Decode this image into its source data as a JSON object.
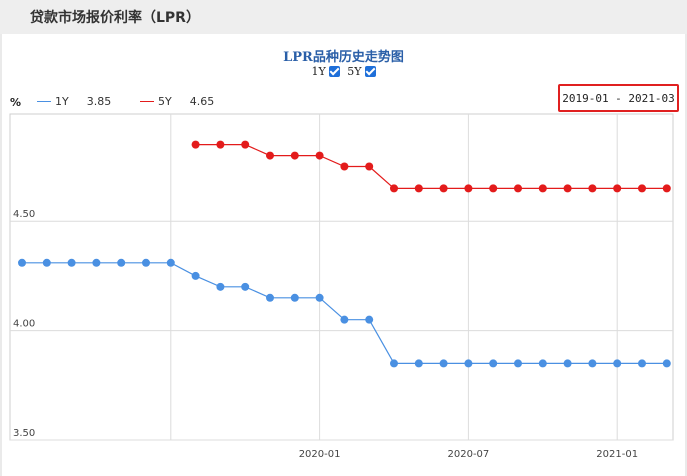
{
  "page": {
    "title": "贷款市场报价利率（LPR）"
  },
  "chart_toggles": {
    "one_year": "1Y",
    "five_year": "5Y"
  },
  "legend": {
    "unit": "%",
    "items": [
      {
        "name": "1Y",
        "value": "3.85",
        "color": "#4a90e2"
      },
      {
        "name": "5Y",
        "value": "4.65",
        "color": "#e31b1b"
      }
    ]
  },
  "range": {
    "label": "2019-01 - 2021-03"
  },
  "chart_data": {
    "type": "line",
    "title": "LPR品种历史走势图",
    "xlabel": "",
    "ylabel": "%",
    "x": [
      "2019-01",
      "2019-02",
      "2019-03",
      "2019-04",
      "2019-05",
      "2019-06",
      "2019-07",
      "2019-08",
      "2019-09",
      "2019-10",
      "2019-11",
      "2019-12",
      "2020-01",
      "2020-02",
      "2020-03",
      "2020-04",
      "2020-05",
      "2020-06",
      "2020-07",
      "2020-08",
      "2020-09",
      "2020-10",
      "2020-11",
      "2020-12",
      "2021-01",
      "2021-02",
      "2021-03"
    ],
    "x_tick_labels": [
      "2020-01",
      "2020-07",
      "2021-01"
    ],
    "y_ticks": [
      "3.50",
      "4.00",
      "4.50"
    ],
    "ylim": [
      3.5,
      4.99
    ],
    "grid": true,
    "series": [
      {
        "name": "1Y",
        "color": "#4a90e2",
        "values": [
          4.31,
          4.31,
          4.31,
          4.31,
          4.31,
          4.31,
          4.31,
          4.25,
          4.2,
          4.2,
          4.15,
          4.15,
          4.15,
          4.05,
          4.05,
          3.85,
          3.85,
          3.85,
          3.85,
          3.85,
          3.85,
          3.85,
          3.85,
          3.85,
          3.85,
          3.85,
          3.85
        ]
      },
      {
        "name": "5Y",
        "color": "#e31b1b",
        "values": [
          null,
          null,
          null,
          null,
          null,
          null,
          null,
          4.85,
          4.85,
          4.85,
          4.8,
          4.8,
          4.8,
          4.75,
          4.75,
          4.65,
          4.65,
          4.65,
          4.65,
          4.65,
          4.65,
          4.65,
          4.65,
          4.65,
          4.65,
          4.65,
          4.65
        ]
      }
    ]
  }
}
